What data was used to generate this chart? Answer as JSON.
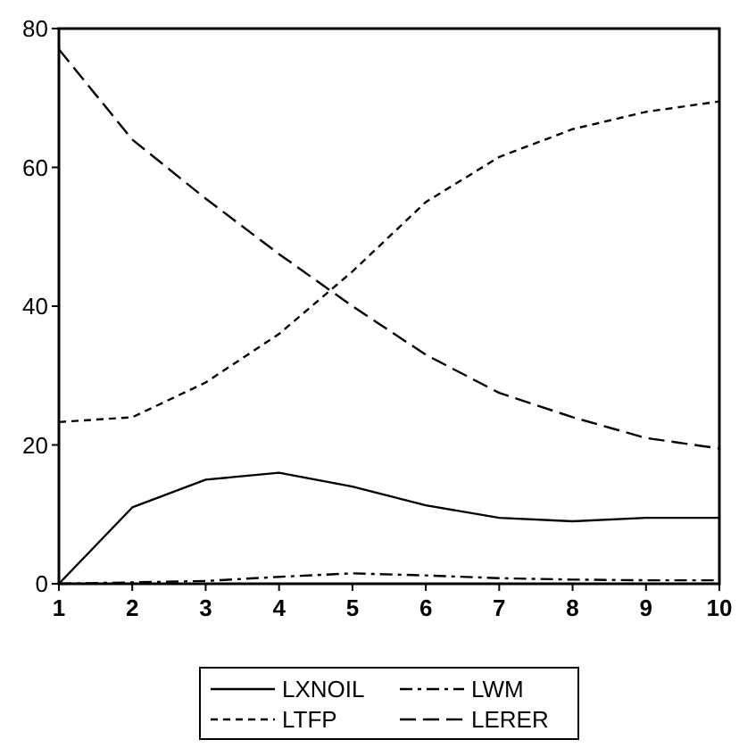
{
  "chart_data": {
    "type": "line",
    "x": [
      1,
      2,
      3,
      4,
      5,
      6,
      7,
      8,
      9,
      10
    ],
    "xlim": [
      1,
      10
    ],
    "xticks": [
      1,
      2,
      3,
      4,
      5,
      6,
      7,
      8,
      9,
      10
    ],
    "ylim": [
      0,
      80
    ],
    "yticks": [
      0,
      20,
      40,
      60,
      80
    ],
    "grid": false,
    "legend": "bottom",
    "marker": "none",
    "series": [
      {
        "name": "LXNOIL",
        "color": "#000000",
        "line_style": "solid",
        "values": [
          0,
          11,
          15,
          16,
          14,
          11.3,
          9.5,
          9,
          9.5,
          9.5
        ]
      },
      {
        "name": "LWM",
        "color": "#000000",
        "line_style": "dashdot",
        "values": [
          0,
          0.2,
          0.4,
          1,
          1.5,
          1.2,
          0.8,
          0.6,
          0.5,
          0.5
        ]
      },
      {
        "name": "LTFP",
        "color": "#000000",
        "line_style": "dotted",
        "values": [
          23.3,
          24,
          29,
          36,
          45,
          55,
          61.5,
          65.5,
          68,
          69.5
        ]
      },
      {
        "name": "LERER",
        "color": "#000000",
        "line_style": "dashed",
        "values": [
          77,
          64,
          55.5,
          47.5,
          40,
          33,
          27.5,
          24,
          21,
          19.5
        ]
      }
    ]
  }
}
